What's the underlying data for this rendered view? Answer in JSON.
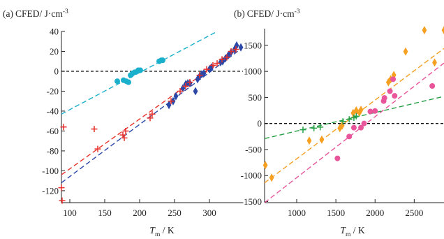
{
  "chart_data": [
    {
      "type": "scatter",
      "panel_label": "(a)",
      "ylabel": "CFED/ J·cm",
      "ylabel_sup": "-3",
      "xlabel_main": "T",
      "xlabel_sub": "m",
      "xlabel_unit": " / K",
      "xlim": [
        88,
        348
      ],
      "ylim": [
        -132,
        40
      ],
      "xticks": [
        100,
        150,
        200,
        250,
        300
      ],
      "yticks": [
        40,
        20,
        0,
        -20,
        -40,
        -60,
        -80,
        -100,
        -120
      ],
      "zero_line": true,
      "series": [
        {
          "marker": "circle",
          "color": "#1ab0cc",
          "points": [
            [
              168,
              -10
            ],
            [
              177,
              -9
            ],
            [
              181,
              -10
            ],
            [
              184,
              -11
            ],
            [
              187,
              -4
            ],
            [
              190,
              -2
            ],
            [
              193,
              -1
            ],
            [
              198,
              1
            ],
            [
              201,
              1
            ],
            [
              228,
              10
            ],
            [
              231,
              11
            ],
            [
              233,
              11
            ]
          ]
        },
        {
          "marker": "diamond",
          "color": "#2b47a8",
          "points": [
            [
              242,
              -34
            ],
            [
              248,
              -30
            ],
            [
              252,
              -25
            ],
            [
              262,
              -17
            ],
            [
              266,
              -13
            ],
            [
              269,
              -12
            ],
            [
              272,
              -12
            ],
            [
              280,
              -20
            ],
            [
              283,
              -8
            ],
            [
              286,
              -5
            ],
            [
              289,
              -3
            ],
            [
              292,
              -2
            ],
            [
              300,
              2
            ],
            [
              303,
              4
            ],
            [
              316,
              9
            ],
            [
              319,
              10
            ],
            [
              323,
              13
            ],
            [
              327,
              16
            ],
            [
              331,
              19
            ],
            [
              336,
              22
            ],
            [
              339,
              26
            ],
            [
              345,
              24
            ]
          ]
        },
        {
          "marker": "plus",
          "color": "#e8302a",
          "points": [
            [
              88,
              -117
            ],
            [
              89,
              -130
            ],
            [
              91,
              -56
            ],
            [
              135,
              -58
            ],
            [
              140,
              -78
            ],
            [
              176,
              -64
            ],
            [
              178,
              -67
            ],
            [
              180,
              -60
            ],
            [
              215,
              -47
            ],
            [
              218,
              -43
            ],
            [
              245,
              -30
            ],
            [
              258,
              -20
            ],
            [
              266,
              -15
            ],
            [
              272,
              -11
            ],
            [
              286,
              -4
            ],
            [
              296,
              2
            ],
            [
              305,
              6
            ],
            [
              311,
              8
            ],
            [
              318,
              12
            ],
            [
              325,
              14
            ],
            [
              331,
              20
            ],
            [
              338,
              22
            ]
          ]
        }
      ],
      "fit_lines": [
        {
          "color": "#1ab0cc",
          "from": [
            88,
            -43
          ],
          "to": [
            311,
            40
          ]
        },
        {
          "color": "#e8302a",
          "from": [
            88,
            -104
          ],
          "to": [
            338,
            21
          ]
        },
        {
          "color": "#2b47a8",
          "from": [
            88,
            -112
          ],
          "to": [
            348,
            24
          ]
        }
      ]
    },
    {
      "type": "scatter",
      "panel_label": "(b)",
      "ylabel": "CFED/ J·cm",
      "ylabel_sup": "-3",
      "xlabel_main": "T",
      "xlabel_sub": "m",
      "xlabel_unit": " / K",
      "xlim": [
        590,
        2880
      ],
      "ylim": [
        -1520,
        1820
      ],
      "xticks": [
        1000,
        1500,
        2000,
        2500
      ],
      "yticks": [
        1500,
        1000,
        500,
        0,
        -500,
        -1000,
        -1500
      ],
      "zero_line": true,
      "series": [
        {
          "marker": "diamond",
          "color": "#f5a021",
          "points": [
            [
              600,
              -800
            ],
            [
              680,
              -1040
            ],
            [
              1160,
              -330
            ],
            [
              1320,
              -310
            ],
            [
              1550,
              -90
            ],
            [
              1580,
              -40
            ],
            [
              1720,
              200
            ],
            [
              1760,
              250
            ],
            [
              1800,
              210
            ],
            [
              1820,
              260
            ],
            [
              2170,
              790
            ],
            [
              2200,
              850
            ],
            [
              2240,
              930
            ],
            [
              2390,
              1380
            ],
            [
              2630,
              1790
            ],
            [
              2760,
              1170
            ],
            [
              2880,
              1790
            ]
          ]
        },
        {
          "marker": "circle",
          "color": "#e8559b",
          "points": [
            [
              1520,
              -670
            ],
            [
              1670,
              -250
            ],
            [
              1730,
              -80
            ],
            [
              1820,
              -80
            ],
            [
              1860,
              0
            ],
            [
              1940,
              230
            ],
            [
              2000,
              240
            ],
            [
              2110,
              430
            ],
            [
              2120,
              490
            ],
            [
              2190,
              620
            ],
            [
              2230,
              850
            ],
            [
              2250,
              530
            ],
            [
              2730,
              720
            ]
          ]
        },
        {
          "marker": "plus",
          "color": "#27a047",
          "points": [
            [
              1080,
              -120
            ],
            [
              1220,
              -90
            ],
            [
              1300,
              -70
            ],
            [
              1590,
              40
            ],
            [
              1670,
              80
            ],
            [
              1730,
              110
            ],
            [
              1760,
              140
            ]
          ]
        }
      ],
      "fit_lines": [
        {
          "color": "#f5a021",
          "from": [
            590,
            -1140
          ],
          "to": [
            2880,
            1440
          ]
        },
        {
          "color": "#e8559b",
          "from": [
            590,
            -1520
          ],
          "to": [
            2880,
            1160
          ]
        },
        {
          "color": "#27a047",
          "from": [
            590,
            -290
          ],
          "to": [
            2880,
            520
          ]
        }
      ]
    }
  ]
}
